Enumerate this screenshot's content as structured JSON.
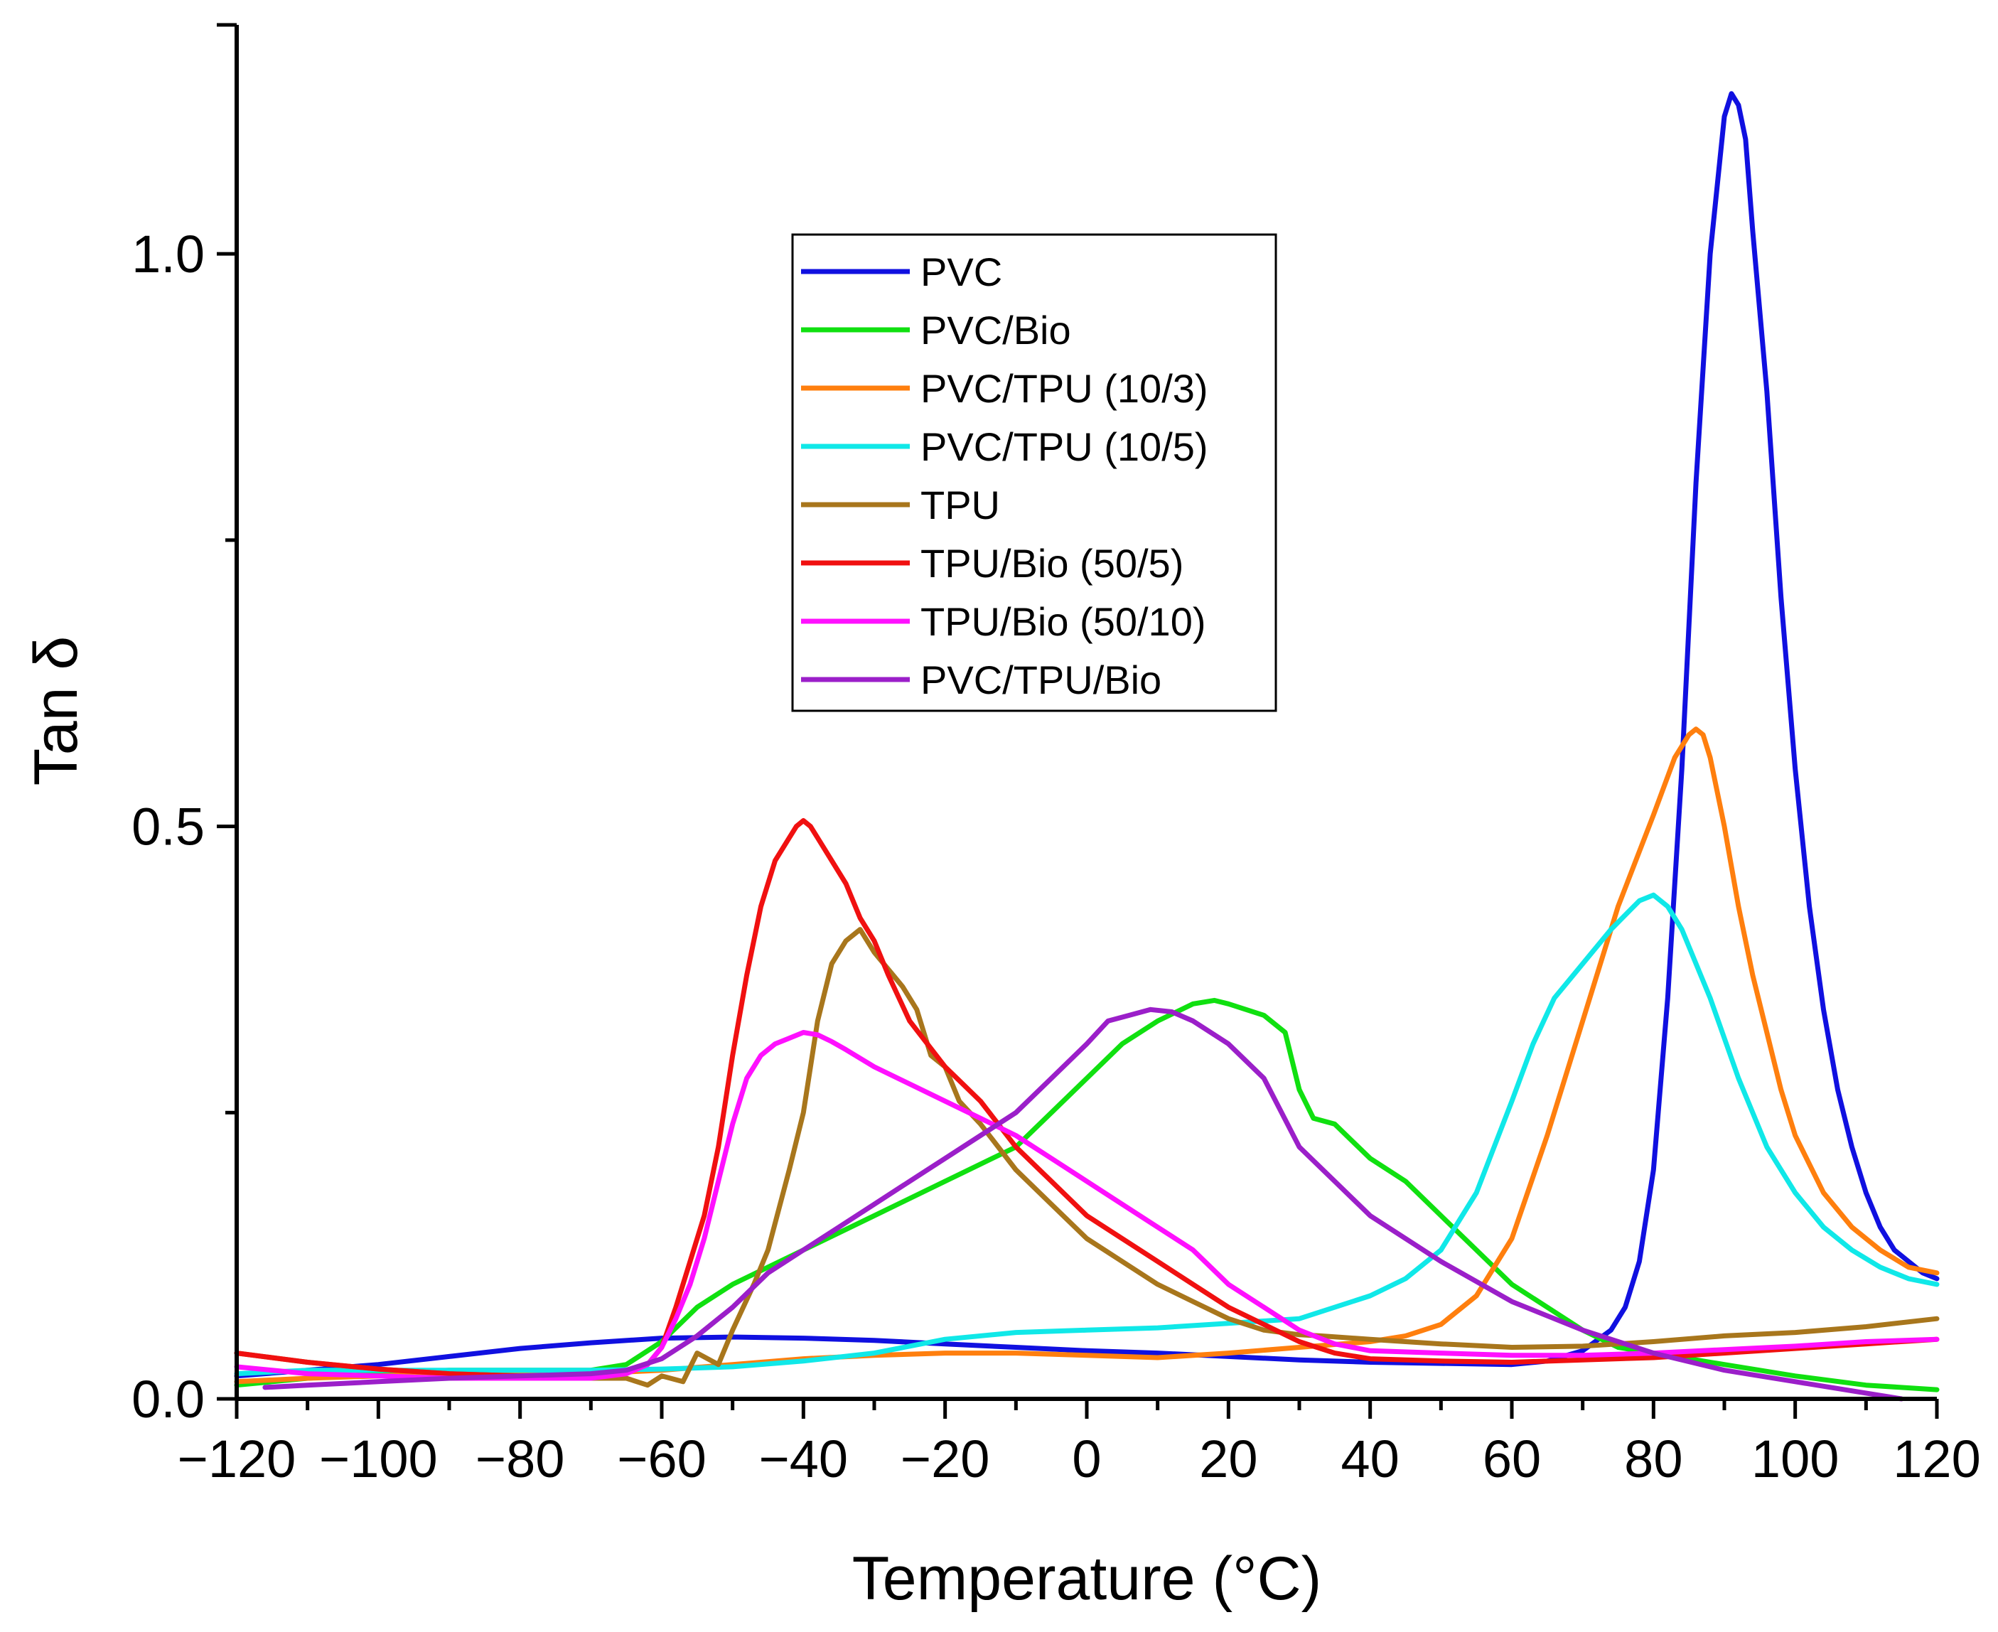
{
  "chart_data": {
    "type": "line",
    "title": "",
    "xlabel": "Temperature (°C)",
    "ylabel": "Tan δ",
    "xlim": [
      -120,
      120
    ],
    "ylim": [
      0.0,
      1.2
    ],
    "grid": false,
    "legend_position": "top-center",
    "x_ticks": [
      -120,
      -100,
      -80,
      -60,
      -40,
      -20,
      0,
      20,
      40,
      60,
      80,
      100,
      120
    ],
    "x_tick_labels": [
      "−120",
      "−100",
      "−80",
      "−60",
      "−40",
      "−20",
      "0",
      "20",
      "40",
      "60",
      "80",
      "100",
      "120"
    ],
    "y_ticks": [
      0.0,
      0.5,
      1.0
    ],
    "y_tick_labels": [
      "0.0",
      "0.5",
      "1.0"
    ],
    "series": [
      {
        "name": "PVC",
        "color": "#1010e0",
        "x": [
          -120,
          -110,
          -100,
          -90,
          -80,
          -70,
          -60,
          -50,
          -40,
          -30,
          -20,
          -10,
          0,
          10,
          20,
          30,
          40,
          50,
          60,
          65,
          70,
          74,
          76,
          78,
          80,
          82,
          84,
          86,
          88,
          90,
          91,
          92,
          93,
          94,
          96,
          98,
          100,
          102,
          104,
          106,
          108,
          110,
          112,
          114,
          116,
          118,
          120
        ],
        "y": [
          0.02,
          0.025,
          0.03,
          0.037,
          0.044,
          0.049,
          0.053,
          0.054,
          0.053,
          0.051,
          0.048,
          0.045,
          0.042,
          0.04,
          0.037,
          0.034,
          0.032,
          0.031,
          0.03,
          0.033,
          0.042,
          0.06,
          0.08,
          0.12,
          0.2,
          0.35,
          0.55,
          0.8,
          1.0,
          1.12,
          1.14,
          1.13,
          1.1,
          1.02,
          0.88,
          0.7,
          0.55,
          0.43,
          0.34,
          0.27,
          0.22,
          0.18,
          0.15,
          0.13,
          0.12,
          0.11,
          0.105
        ]
      },
      {
        "name": "PVC/Bio",
        "color": "#10e010",
        "x": [
          -120,
          -110,
          -100,
          -90,
          -80,
          -70,
          -65,
          -60,
          -55,
          -50,
          -40,
          -30,
          -20,
          -10,
          -5,
          0,
          5,
          10,
          15,
          18,
          20,
          25,
          28,
          30,
          32,
          35,
          40,
          45,
          50,
          55,
          60,
          65,
          70,
          75,
          80,
          85,
          90,
          100,
          110,
          120
        ],
        "y": [
          0.012,
          0.018,
          0.022,
          0.025,
          0.025,
          0.025,
          0.03,
          0.05,
          0.08,
          0.1,
          0.13,
          0.16,
          0.19,
          0.22,
          0.25,
          0.28,
          0.31,
          0.33,
          0.345,
          0.348,
          0.345,
          0.335,
          0.32,
          0.27,
          0.245,
          0.24,
          0.21,
          0.19,
          0.16,
          0.13,
          0.1,
          0.08,
          0.06,
          0.045,
          0.04,
          0.035,
          0.03,
          0.02,
          0.012,
          0.008
        ]
      },
      {
        "name": "PVC/TPU (10/3)",
        "color": "#ff7f0e",
        "x": [
          -120,
          -110,
          -100,
          -90,
          -80,
          -70,
          -60,
          -50,
          -40,
          -30,
          -20,
          -10,
          0,
          10,
          20,
          30,
          40,
          45,
          50,
          55,
          60,
          65,
          70,
          75,
          80,
          83,
          85,
          86,
          87,
          88,
          90,
          92,
          94,
          96,
          98,
          100,
          104,
          108,
          112,
          116,
          120
        ],
        "y": [
          0.015,
          0.018,
          0.02,
          0.022,
          0.022,
          0.022,
          0.025,
          0.03,
          0.035,
          0.038,
          0.04,
          0.04,
          0.038,
          0.036,
          0.04,
          0.045,
          0.05,
          0.055,
          0.065,
          0.09,
          0.14,
          0.23,
          0.33,
          0.43,
          0.51,
          0.56,
          0.58,
          0.585,
          0.58,
          0.56,
          0.5,
          0.43,
          0.37,
          0.32,
          0.27,
          0.23,
          0.18,
          0.15,
          0.13,
          0.115,
          0.11
        ]
      },
      {
        "name": "PVC/TPU (10/5)",
        "color": "#10e8e8",
        "x": [
          -120,
          -110,
          -100,
          -90,
          -80,
          -70,
          -60,
          -50,
          -40,
          -30,
          -20,
          -10,
          0,
          10,
          20,
          30,
          40,
          45,
          50,
          55,
          60,
          63,
          66,
          70,
          74,
          78,
          80,
          82,
          84,
          88,
          92,
          96,
          100,
          104,
          108,
          112,
          116,
          120
        ],
        "y": [
          0.022,
          0.025,
          0.025,
          0.025,
          0.025,
          0.025,
          0.026,
          0.028,
          0.033,
          0.04,
          0.052,
          0.058,
          0.06,
          0.062,
          0.066,
          0.07,
          0.09,
          0.105,
          0.13,
          0.18,
          0.26,
          0.31,
          0.35,
          0.38,
          0.41,
          0.435,
          0.44,
          0.43,
          0.41,
          0.35,
          0.28,
          0.22,
          0.18,
          0.15,
          0.13,
          0.115,
          0.105,
          0.1
        ]
      },
      {
        "name": "TPU",
        "color": "#a8761c",
        "x": [
          -120,
          -110,
          -100,
          -90,
          -80,
          -70,
          -65,
          -62,
          -60,
          -57,
          -55,
          -52,
          -50,
          -47,
          -45,
          -42,
          -40,
          -38,
          -36,
          -34,
          -32,
          -30,
          -28,
          -26,
          -24,
          -22,
          -20,
          -18,
          -15,
          -10,
          -5,
          0,
          5,
          10,
          15,
          20,
          25,
          30,
          33,
          40,
          50,
          60,
          70,
          80,
          90,
          100,
          110,
          120
        ],
        "y": [
          0.04,
          0.032,
          0.026,
          0.022,
          0.02,
          0.018,
          0.018,
          0.012,
          0.02,
          0.015,
          0.04,
          0.03,
          0.06,
          0.1,
          0.13,
          0.2,
          0.25,
          0.33,
          0.38,
          0.4,
          0.41,
          0.39,
          0.375,
          0.36,
          0.34,
          0.3,
          0.29,
          0.26,
          0.24,
          0.2,
          0.17,
          0.14,
          0.12,
          0.1,
          0.085,
          0.07,
          0.06,
          0.056,
          0.055,
          0.052,
          0.048,
          0.045,
          0.046,
          0.05,
          0.055,
          0.058,
          0.063,
          0.07
        ]
      },
      {
        "name": "TPU/Bio (50/5)",
        "color": "#f01010",
        "x": [
          -120,
          -110,
          -100,
          -90,
          -80,
          -70,
          -65,
          -62,
          -60,
          -58,
          -56,
          -54,
          -52,
          -50,
          -48,
          -46,
          -44,
          -42,
          -41,
          -40,
          -39,
          -38,
          -36,
          -34,
          -32,
          -30,
          -28,
          -25,
          -20,
          -15,
          -10,
          -5,
          0,
          5,
          10,
          15,
          20,
          25,
          30,
          35,
          40,
          50,
          60,
          70,
          80,
          90,
          100,
          110,
          120
        ],
        "y": [
          0.04,
          0.032,
          0.026,
          0.022,
          0.02,
          0.02,
          0.024,
          0.03,
          0.045,
          0.08,
          0.12,
          0.16,
          0.22,
          0.3,
          0.37,
          0.43,
          0.47,
          0.49,
          0.5,
          0.505,
          0.5,
          0.49,
          0.47,
          0.45,
          0.42,
          0.4,
          0.37,
          0.33,
          0.29,
          0.26,
          0.22,
          0.19,
          0.16,
          0.14,
          0.12,
          0.1,
          0.08,
          0.065,
          0.05,
          0.04,
          0.035,
          0.033,
          0.032,
          0.034,
          0.036,
          0.04,
          0.044,
          0.048,
          0.052
        ]
      },
      {
        "name": "TPU/Bio (50/10)",
        "color": "#ff10ff",
        "x": [
          -120,
          -110,
          -100,
          -90,
          -80,
          -70,
          -65,
          -62,
          -60,
          -58,
          -56,
          -54,
          -52,
          -50,
          -48,
          -46,
          -44,
          -42,
          -40,
          -38,
          -36,
          -34,
          -30,
          -25,
          -20,
          -15,
          -10,
          -5,
          0,
          5,
          10,
          15,
          20,
          25,
          30,
          35,
          40,
          50,
          60,
          70,
          80,
          90,
          100,
          110,
          120
        ],
        "y": [
          0.028,
          0.022,
          0.02,
          0.018,
          0.018,
          0.018,
          0.022,
          0.03,
          0.045,
          0.07,
          0.1,
          0.14,
          0.19,
          0.24,
          0.28,
          0.3,
          0.31,
          0.315,
          0.32,
          0.318,
          0.312,
          0.305,
          0.29,
          0.275,
          0.26,
          0.245,
          0.23,
          0.21,
          0.19,
          0.17,
          0.15,
          0.13,
          0.1,
          0.08,
          0.06,
          0.048,
          0.042,
          0.04,
          0.038,
          0.038,
          0.04,
          0.043,
          0.046,
          0.05,
          0.052
        ]
      },
      {
        "name": "PVC/TPU/Bio",
        "color": "#9b1fc9",
        "x": [
          -116,
          -110,
          -100,
          -90,
          -80,
          -70,
          -65,
          -60,
          -55,
          -50,
          -45,
          -40,
          -35,
          -30,
          -25,
          -20,
          -15,
          -10,
          -5,
          0,
          3,
          6,
          9,
          12,
          15,
          20,
          25,
          30,
          35,
          40,
          50,
          60,
          70,
          80,
          90,
          100,
          110,
          115
        ],
        "y": [
          0.01,
          0.012,
          0.015,
          0.018,
          0.02,
          0.022,
          0.025,
          0.035,
          0.055,
          0.08,
          0.11,
          0.13,
          0.15,
          0.17,
          0.19,
          0.21,
          0.23,
          0.25,
          0.28,
          0.31,
          0.33,
          0.335,
          0.34,
          0.338,
          0.33,
          0.31,
          0.28,
          0.22,
          0.19,
          0.16,
          0.12,
          0.085,
          0.06,
          0.04,
          0.025,
          0.015,
          0.005,
          0.0
        ]
      }
    ]
  }
}
